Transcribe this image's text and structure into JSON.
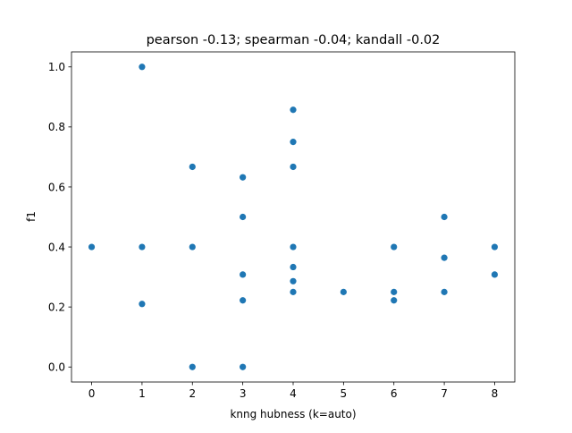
{
  "chart_data": {
    "type": "scatter",
    "title": "pearson -0.13; spearman -0.04; kandall -0.02",
    "xlabel": "knng hubness (k=auto)",
    "ylabel": "f1",
    "xlim": [
      -0.4,
      8.4
    ],
    "ylim": [
      -0.05,
      1.05
    ],
    "xticks": [
      0,
      1,
      2,
      3,
      4,
      5,
      6,
      7,
      8
    ],
    "yticks": [
      0.0,
      0.2,
      0.4,
      0.6,
      0.8,
      1.0
    ],
    "xtick_labels": [
      "0",
      "1",
      "2",
      "3",
      "4",
      "5",
      "6",
      "7",
      "8"
    ],
    "ytick_labels": [
      "0.0",
      "0.2",
      "0.4",
      "0.6",
      "0.8",
      "1.0"
    ],
    "grid": false,
    "marker_color": "#1f77b4",
    "points": [
      {
        "x": 0,
        "y": 0.4
      },
      {
        "x": 1,
        "y": 1.0
      },
      {
        "x": 1,
        "y": 0.4
      },
      {
        "x": 1,
        "y": 0.21
      },
      {
        "x": 2,
        "y": 0.667
      },
      {
        "x": 2,
        "y": 0.4
      },
      {
        "x": 2,
        "y": 0.0
      },
      {
        "x": 3,
        "y": 0.632
      },
      {
        "x": 3,
        "y": 0.5
      },
      {
        "x": 3,
        "y": 0.308
      },
      {
        "x": 3,
        "y": 0.222
      },
      {
        "x": 3,
        "y": 0.0
      },
      {
        "x": 4,
        "y": 0.857
      },
      {
        "x": 4,
        "y": 0.75
      },
      {
        "x": 4,
        "y": 0.667
      },
      {
        "x": 4,
        "y": 0.4
      },
      {
        "x": 4,
        "y": 0.333
      },
      {
        "x": 4,
        "y": 0.286
      },
      {
        "x": 4,
        "y": 0.25
      },
      {
        "x": 5,
        "y": 0.25
      },
      {
        "x": 6,
        "y": 0.4
      },
      {
        "x": 6,
        "y": 0.25
      },
      {
        "x": 6,
        "y": 0.222
      },
      {
        "x": 7,
        "y": 0.5
      },
      {
        "x": 7,
        "y": 0.364
      },
      {
        "x": 7,
        "y": 0.25
      },
      {
        "x": 8,
        "y": 0.4
      },
      {
        "x": 8,
        "y": 0.308
      }
    ]
  }
}
